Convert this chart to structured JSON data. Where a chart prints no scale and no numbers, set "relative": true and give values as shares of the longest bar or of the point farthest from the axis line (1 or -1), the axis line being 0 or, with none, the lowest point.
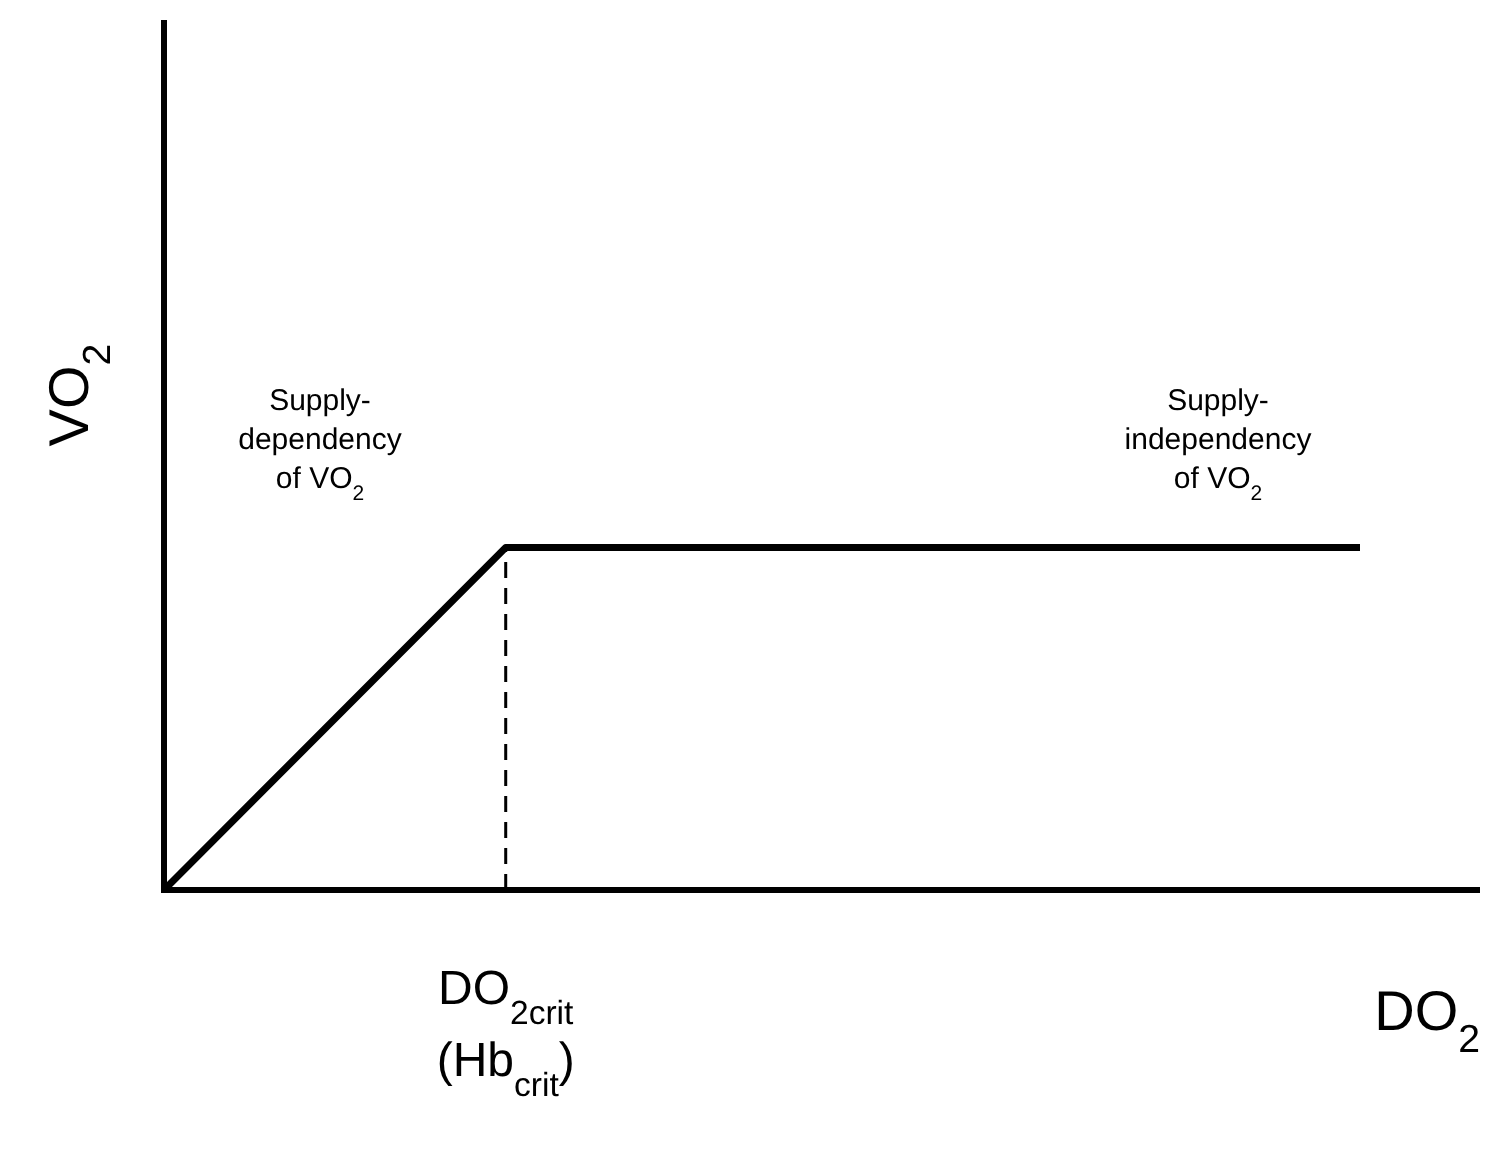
{
  "chart_data": {
    "type": "line",
    "relative": true,
    "xlabel": "DO$_{2}$",
    "ylabel": "VO$_{2}$",
    "categories": [
      null,
      null,
      null,
      null,
      null,
      null,
      null,
      null
    ],
    "marker": "none",
    "line_style": "solid",
    "series": [
      {
        "color": "#000000",
        "values": [
          0,
          0.5,
          1,
          1,
          1,
          1,
          1,
          1
        ]
      }
    ],
    "ref_lines": [
      {
        "axis": "x",
        "label": "DO$_{2crit}$\n(Hb$_{crit}$)",
        "line_style": "dashed",
        "color": "#000000"
      }
    ],
    "annotations": [
      "Supply-\ndependency\nof VO$_{2}$",
      "Supply-\nindependency\nof VO$_{2}$"
    ]
  }
}
